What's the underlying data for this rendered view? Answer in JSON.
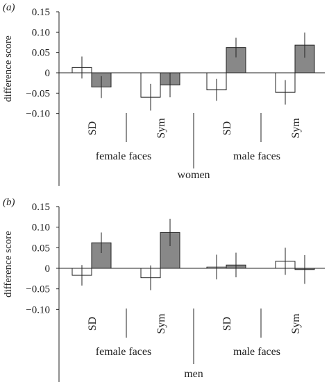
{
  "chart_data": [
    {
      "type": "bar",
      "panel_label": "(a)",
      "ylabel": "difference score",
      "ylim": [
        -0.13,
        0.15
      ],
      "yticks": [
        0.15,
        0.1,
        0.05,
        0,
        -0.05,
        -0.1
      ],
      "ytick_labels": [
        "0.15",
        "0.10",
        "0.05",
        "0",
        "−0.05",
        "−0.10"
      ],
      "bar_colors": {
        "first": "#ffffff",
        "second": "#888888"
      },
      "groups": [
        {
          "sub": "SD",
          "bars": [
            {
              "value": 0.013,
              "err": 0.027
            },
            {
              "value": -0.035,
              "err": 0.027
            }
          ]
        },
        {
          "sub": "Sym",
          "bars": [
            {
              "value": -0.06,
              "err": 0.033
            },
            {
              "value": -0.03,
              "err": 0.03
            }
          ]
        },
        {
          "sub": "SD",
          "bars": [
            {
              "value": -0.042,
              "err": 0.027
            },
            {
              "value": 0.062,
              "err": 0.024
            }
          ]
        },
        {
          "sub": "Sym",
          "bars": [
            {
              "value": -0.048,
              "err": 0.03
            },
            {
              "value": 0.068,
              "err": 0.031
            }
          ]
        }
      ],
      "face_labels": [
        "female faces",
        "male faces"
      ],
      "participant_label": "women"
    },
    {
      "type": "bar",
      "panel_label": "(b)",
      "ylabel": "difference score",
      "ylim": [
        -0.13,
        0.15
      ],
      "yticks": [
        0.15,
        0.1,
        0.05,
        0,
        -0.05,
        -0.1
      ],
      "ytick_labels": [
        "0.15",
        "0.10",
        "0.05",
        "0",
        "−0.05",
        "−0.10"
      ],
      "bar_colors": {
        "first": "#ffffff",
        "second": "#888888"
      },
      "groups": [
        {
          "sub": "SD",
          "bars": [
            {
              "value": -0.017,
              "err": 0.025
            },
            {
              "value": 0.062,
              "err": 0.025
            }
          ]
        },
        {
          "sub": "Sym",
          "bars": [
            {
              "value": -0.023,
              "err": 0.03
            },
            {
              "value": 0.087,
              "err": 0.033
            }
          ]
        },
        {
          "sub": "SD",
          "bars": [
            {
              "value": 0.003,
              "err": 0.03
            },
            {
              "value": 0.008,
              "err": 0.03
            }
          ]
        },
        {
          "sub": "Sym",
          "bars": [
            {
              "value": 0.017,
              "err": 0.033
            },
            {
              "value": -0.003,
              "err": 0.035
            }
          ]
        }
      ],
      "face_labels": [
        "female faces",
        "male faces"
      ],
      "participant_label": "men"
    }
  ]
}
